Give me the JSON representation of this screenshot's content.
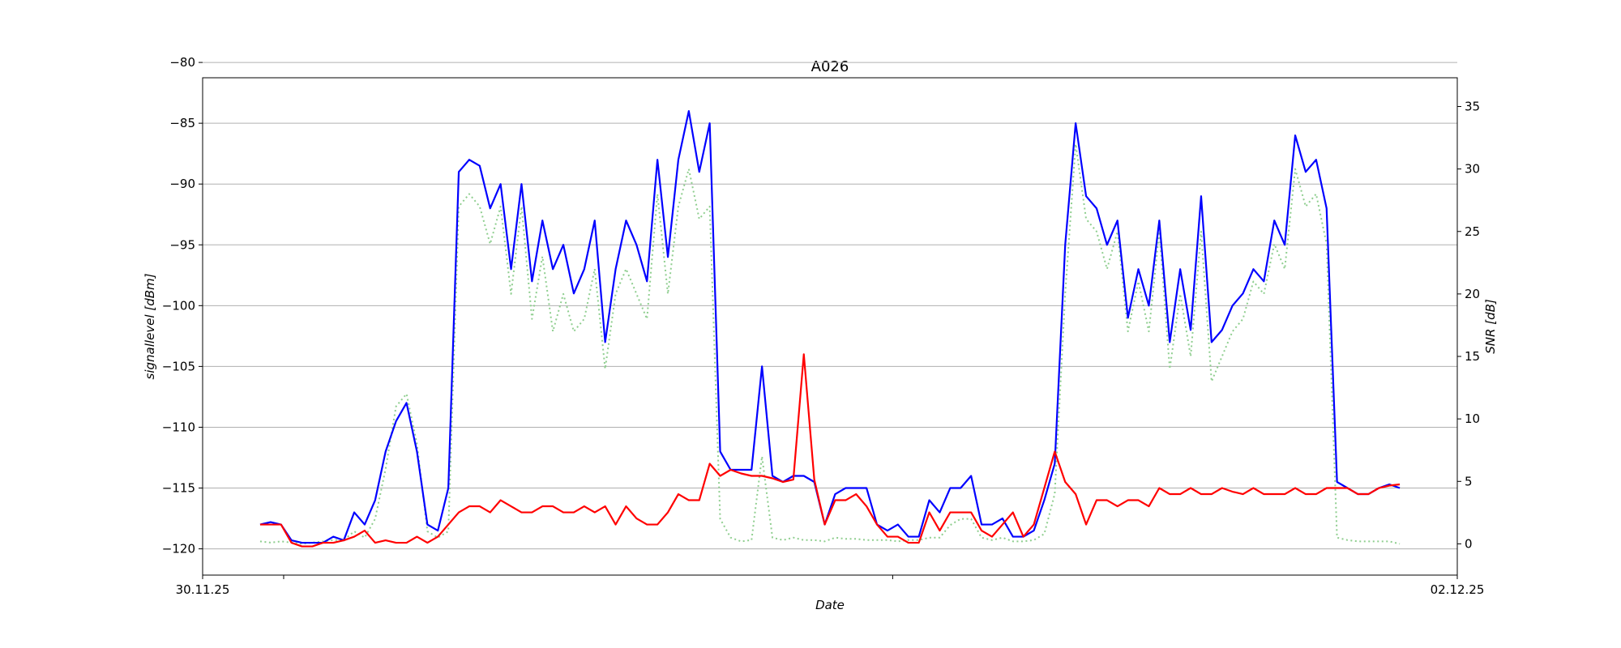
{
  "chart_data": {
    "type": "line",
    "title": "A026",
    "xlabel": "Date",
    "ylabel": "signallevel [dBm]",
    "y2label": "SNR [dB]",
    "xlim": [
      0,
      48
    ],
    "xticks": [
      {
        "value": 0,
        "label": "30.11.25"
      },
      {
        "value": 3.1,
        "label": null
      },
      {
        "value": 26.4,
        "label": null
      },
      {
        "value": 48,
        "label": "02.12.25"
      }
    ],
    "ylim": [
      -122.16,
      -81.26
    ],
    "yticks": [
      {
        "value": -120,
        "label": "−120"
      },
      {
        "value": -115,
        "label": "−115"
      },
      {
        "value": -110,
        "label": "−110"
      },
      {
        "value": -105,
        "label": "−105"
      },
      {
        "value": -100,
        "label": "−100"
      },
      {
        "value": -95,
        "label": "−95"
      },
      {
        "value": -90,
        "label": "−90"
      },
      {
        "value": -85,
        "label": "−85"
      },
      {
        "value": -80,
        "label": "−80"
      }
    ],
    "y2lim": [
      -2.5,
      37.3
    ],
    "y2ticks": [
      0,
      5,
      10,
      15,
      20,
      25,
      30,
      35
    ],
    "grid": true,
    "x": [
      2.2,
      2.6,
      3,
      3.4,
      3.8,
      4.2,
      4.6,
      5,
      5.4,
      5.8,
      6.2,
      6.6,
      7,
      7.4,
      7.8,
      8.2,
      8.6,
      9,
      9.4,
      9.8,
      10.2,
      10.6,
      11,
      11.4,
      11.8,
      12.2,
      12.6,
      13,
      13.4,
      13.8,
      14.2,
      14.6,
      15,
      15.4,
      15.8,
      16.2,
      16.6,
      17,
      17.4,
      17.8,
      18.2,
      18.6,
      19,
      19.4,
      19.8,
      20.2,
      20.6,
      21,
      21.4,
      21.8,
      22.2,
      22.6,
      23,
      23.4,
      23.8,
      24.2,
      24.6,
      25,
      25.4,
      25.8,
      26.2,
      26.6,
      27,
      27.4,
      27.8,
      28.2,
      28.6,
      29,
      29.4,
      29.8,
      30.2,
      30.6,
      31,
      31.4,
      31.8,
      32.2,
      32.6,
      33,
      33.4,
      33.8,
      34.2,
      34.6,
      35,
      35.4,
      35.8,
      36.2,
      36.6,
      37,
      37.4,
      37.8,
      38.2,
      38.6,
      39,
      39.4,
      39.8,
      40.2,
      40.6,
      41,
      41.4,
      41.8,
      42.2,
      42.6,
      43,
      43.4,
      43.8,
      44.2,
      44.6,
      45,
      45.4,
      45.8
    ],
    "series": [
      {
        "color": "#8fce8f",
        "axis": "y2",
        "style": "dotted",
        "values": [
          0.2,
          0.1,
          0.2,
          0.1,
          0,
          0.1,
          0.2,
          0.3,
          0.3,
          1,
          0.5,
          2,
          6,
          11,
          12,
          8,
          1,
          0.5,
          1,
          27,
          28,
          27,
          24,
          27,
          20,
          27,
          18,
          23,
          17,
          20,
          17,
          18,
          22,
          14,
          20,
          22,
          20,
          18,
          28,
          20,
          27,
          30,
          26,
          27,
          2,
          0.5,
          0.2,
          0.3,
          7,
          0.5,
          0.3,
          0.5,
          0.3,
          0.3,
          0.2,
          0.5,
          0.4,
          0.4,
          0.3,
          0.3,
          0.3,
          0.2,
          0.3,
          0.3,
          0.5,
          0.5,
          1.5,
          2,
          2,
          0.5,
          0.3,
          0.5,
          0.2,
          0.2,
          0.3,
          0.8,
          4,
          20,
          32,
          26,
          25,
          22,
          25,
          17,
          21,
          17,
          25,
          14,
          20,
          15,
          25,
          13,
          15,
          17,
          18,
          21,
          20,
          24,
          22,
          30,
          27,
          28,
          24,
          0.5,
          0.3,
          0.2,
          0.2,
          0.2,
          0.2,
          0
        ]
      },
      {
        "color": "#0000ff",
        "values": [
          -118,
          -117.8,
          -118,
          -119.3,
          -119.5,
          -119.5,
          -119.5,
          -119,
          -119.3,
          -117,
          -118,
          -116,
          -112,
          -109.5,
          -108,
          -112,
          -118,
          -118.5,
          -115,
          -89,
          -88,
          -88.5,
          -92,
          -90,
          -97,
          -90,
          -98,
          -93,
          -97,
          -95,
          -99,
          -97,
          -93,
          -103,
          -97,
          -93,
          -95,
          -98,
          -88,
          -96,
          -88,
          -84,
          -89,
          -85,
          -112,
          -113.5,
          -113.5,
          -113.5,
          -105,
          -114,
          -114.5,
          -114,
          -114,
          -114.5,
          -118,
          -115.5,
          -115,
          -115,
          -115,
          -118,
          -118.5,
          -118,
          -119,
          -119,
          -116,
          -117,
          -115,
          -115,
          -114,
          -118,
          -118,
          -117.5,
          -119,
          -119,
          -118.5,
          -116,
          -113,
          -95,
          -85,
          -91,
          -92,
          -95,
          -93,
          -101,
          -97,
          -100,
          -93,
          -103,
          -97,
          -102,
          -91,
          -103,
          -102,
          -100,
          -99,
          -97,
          -98,
          -93,
          -95,
          -86,
          -89,
          -88,
          -92,
          -114.5,
          -115,
          -115.5,
          -115.5,
          -115,
          -114.7,
          -115
        ]
      },
      {
        "color": "#ff0000",
        "values": [
          -118,
          -118,
          -118,
          -119.5,
          -119.8,
          -119.8,
          -119.5,
          -119.5,
          -119.3,
          -119,
          -118.5,
          -119.5,
          -119.3,
          -119.5,
          -119.5,
          -119,
          -119.5,
          -119,
          -118,
          -117,
          -116.5,
          -116.5,
          -117,
          -116,
          -116.5,
          -117,
          -117,
          -116.5,
          -116.5,
          -117,
          -117,
          -116.5,
          -117,
          -116.5,
          -118,
          -116.5,
          -117.5,
          -118,
          -118,
          -117,
          -115.5,
          -116,
          -116,
          -113,
          -114,
          -113.5,
          -113.8,
          -114,
          -114,
          -114.2,
          -114.5,
          -114.3,
          -104,
          -114.3,
          -118,
          -116,
          -116,
          -115.5,
          -116.5,
          -118,
          -119,
          -119,
          -119.5,
          -119.5,
          -117,
          -118.5,
          -117,
          -117,
          -117,
          -118.5,
          -119,
          -118,
          -117,
          -119,
          -118,
          -115,
          -112,
          -114.5,
          -115.5,
          -118,
          -116,
          -116,
          -116.5,
          -116,
          -116,
          -116.5,
          -115,
          -115.5,
          -115.5,
          -115,
          -115.5,
          -115.5,
          -115,
          -115.3,
          -115.5,
          -115,
          -115.5,
          -115.5,
          -115.5,
          -115,
          -115.5,
          -115.5,
          -115,
          -115,
          -115,
          -115.5,
          -115.5,
          -115,
          -114.8,
          -114.7
        ]
      }
    ]
  }
}
